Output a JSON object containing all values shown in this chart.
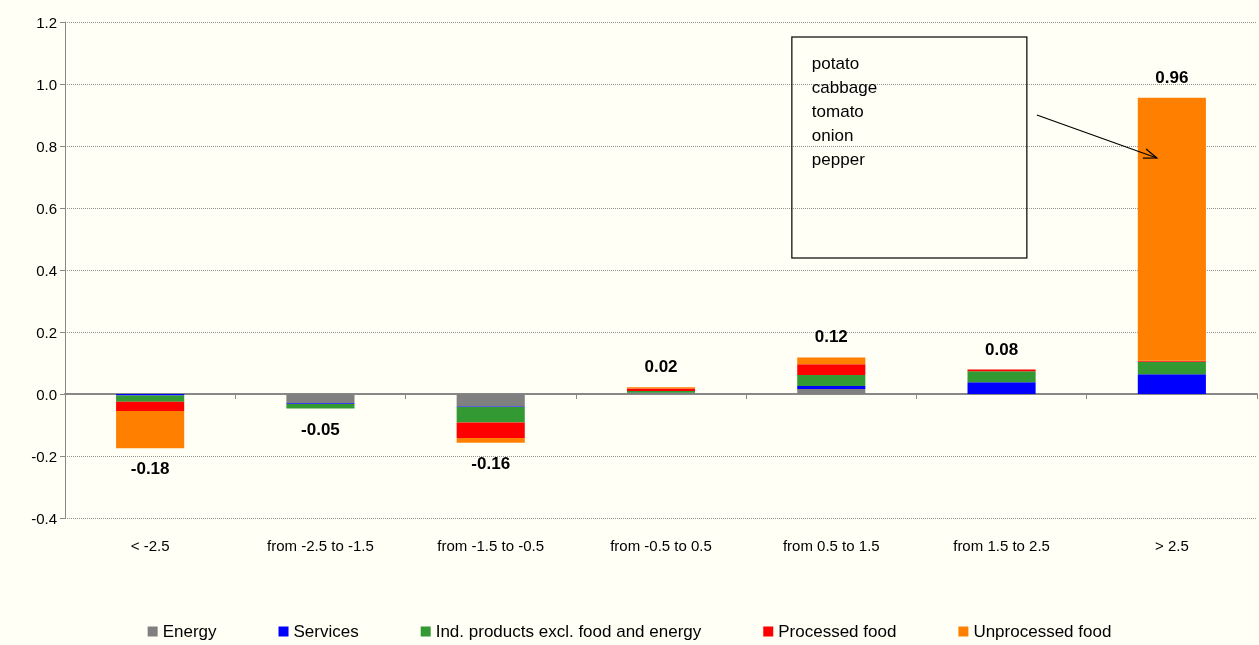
{
  "chart_data": {
    "type": "bar",
    "stacked": true,
    "categories": [
      "< -2.5",
      "from -2.5 to -1.5",
      "from -1.5 to -0.5",
      "from -0.5 to 0.5",
      "from 0.5 to 1.5",
      "from 1.5 to 2.5",
      "> 2.5"
    ],
    "series": [
      {
        "name": "Energy",
        "color": "#808080",
        "values": [
          null,
          -0.03,
          -0.04,
          0.003,
          0.016,
          null,
          null
        ]
      },
      {
        "name": "Services",
        "color": "#0000ff",
        "values": [
          -0.005,
          -0.002,
          -0.002,
          0.001,
          0.01,
          0.038,
          0.064
        ]
      },
      {
        "name": "Ind. products excl. food and energy",
        "color": "#339933",
        "values": [
          -0.02,
          -0.015,
          -0.05,
          0.006,
          0.035,
          0.035,
          0.04
        ]
      },
      {
        "name": "Processed food",
        "color": "#ff0000",
        "values": [
          -0.03,
          null,
          -0.05,
          0.008,
          0.035,
          0.006,
          0.003
        ]
      },
      {
        "name": "Unprocessed food",
        "color": "#ff8000",
        "values": [
          -0.12,
          null,
          -0.015,
          0.004,
          0.022,
          null,
          0.849
        ]
      }
    ],
    "totals": [
      "-0.18",
      "-0.05",
      "-0.16",
      "0.02",
      "0.12",
      "0.08",
      "0.96"
    ],
    "ylim": [
      -0.4,
      1.2
    ],
    "yticks": [
      {
        "value": -0.4,
        "label": "-0.4"
      },
      {
        "value": -0.2,
        "label": "-0.2"
      },
      {
        "value": 0,
        "label": "0.0"
      },
      {
        "value": 0.2,
        "label": "0.2"
      },
      {
        "value": 0.4,
        "label": "0.4"
      },
      {
        "value": 0.6,
        "label": "0.6"
      },
      {
        "value": 0.8,
        "label": "0.8"
      },
      {
        "value": 1.0,
        "label": "1.0"
      },
      {
        "value": 1.2,
        "label": "1.2"
      }
    ],
    "grid": "y",
    "legend": "bottom",
    "annotations": [
      "potato\ncabbage\ntomato\nonion\npepper"
    ]
  }
}
